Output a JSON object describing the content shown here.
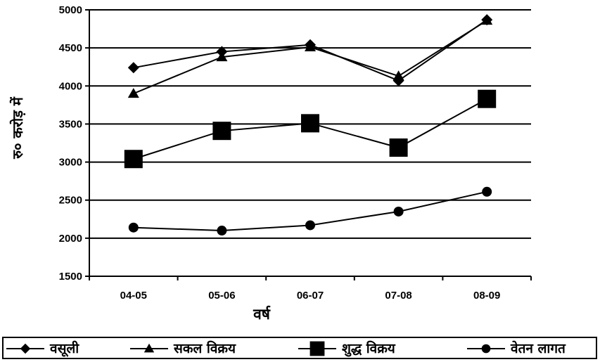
{
  "chart_data": {
    "type": "line",
    "title": "",
    "xlabel": "वर्ष",
    "ylabel": "रु० करोड़ में",
    "categories": [
      "04-05",
      "05-06",
      "06-07",
      "07-08",
      "08-09"
    ],
    "ylim": [
      1500,
      5000
    ],
    "yticks": [
      1500,
      2000,
      2500,
      3000,
      3500,
      4000,
      4500,
      5000
    ],
    "grid": "horizontal",
    "legend_position": "bottom",
    "series": [
      {
        "name": "वसूली",
        "marker": "diamond",
        "values": [
          4240,
          4450,
          4540,
          4070,
          4870
        ]
      },
      {
        "name": "सकल विक्रय",
        "marker": "triangle",
        "values": [
          3900,
          4380,
          4510,
          4130,
          4860
        ]
      },
      {
        "name": "शुद्ध विक्रय",
        "marker": "square",
        "values": [
          3040,
          3410,
          3510,
          3190,
          3830
        ]
      },
      {
        "name": "वेतन लागत",
        "marker": "circle",
        "values": [
          2140,
          2100,
          2170,
          2350,
          2610
        ]
      }
    ]
  },
  "colors": {
    "line": "#000000",
    "background": "#ffffff"
  }
}
